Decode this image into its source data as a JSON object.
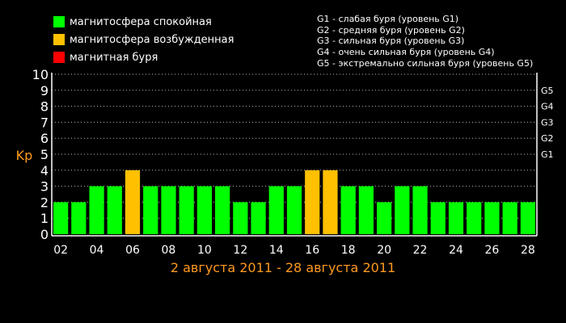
{
  "legend": {
    "items": [
      {
        "label": "магнитосфера спокойная",
        "color": "#00ff00"
      },
      {
        "label": "магнитосфера возбужденная",
        "color": "#ffc000"
      },
      {
        "label": "магнитная буря",
        "color": "#ff0000"
      }
    ]
  },
  "storm_legend": [
    "G1 - слабая буря (уровень G1)",
    "G2 - средняя буря (уровень G2)",
    "G3 - сильная буря (уровень G3)",
    "G4 - очень сильная буря (уровень G4)",
    "G5 - экстремально сильная буря (уровень G5)"
  ],
  "date_range": "2 августа 2011 - 28 августа 2011",
  "chart_data": {
    "type": "bar",
    "ylabel": "Kp",
    "ylim": [
      0,
      10
    ],
    "yticks": [
      "0",
      "1",
      "2",
      "3",
      "4",
      "5",
      "6",
      "7",
      "8",
      "9",
      "10"
    ],
    "right_ticks": [
      {
        "label": "G1",
        "value": 5
      },
      {
        "label": "G2",
        "value": 6
      },
      {
        "label": "G3",
        "value": 7
      },
      {
        "label": "G4",
        "value": 8
      },
      {
        "label": "G5",
        "value": 9
      }
    ],
    "grid": true,
    "categories": [
      "02",
      "03",
      "04",
      "05",
      "06",
      "07",
      "08",
      "09",
      "10",
      "11",
      "12",
      "13",
      "14",
      "15",
      "16",
      "17",
      "18",
      "19",
      "20",
      "21",
      "22",
      "23",
      "24",
      "25",
      "26",
      "27",
      "28"
    ],
    "xtick_labels": [
      "02",
      "04",
      "06",
      "08",
      "10",
      "12",
      "14",
      "16",
      "18",
      "20",
      "22",
      "24",
      "26",
      "28"
    ],
    "values": [
      2,
      2,
      3,
      3,
      4,
      3,
      3,
      3,
      3,
      3,
      2,
      2,
      3,
      3,
      4,
      4,
      3,
      3,
      2,
      3,
      3,
      2,
      2,
      2,
      2,
      2,
      2
    ],
    "colors": {
      "quiet": "#00ff00",
      "active": "#ffc000",
      "storm": "#ff0000"
    }
  }
}
